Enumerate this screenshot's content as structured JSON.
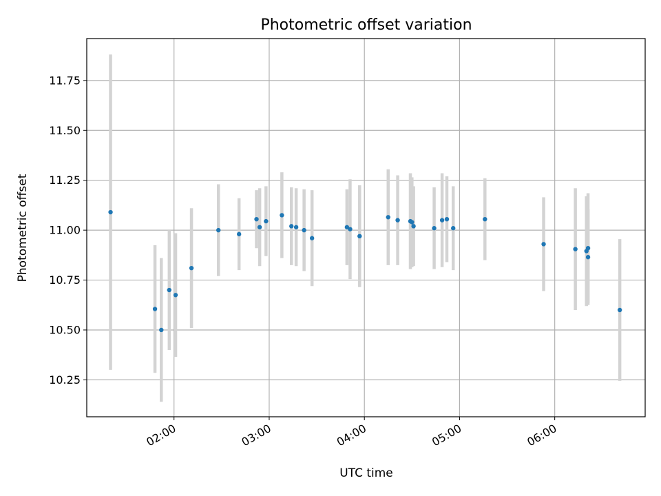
{
  "chart_data": {
    "type": "scatter",
    "title": "Photometric offset variation",
    "xlabel": "UTC time",
    "ylabel": "Photometric offset",
    "x_tick_labels": [
      "02:00",
      "03:00",
      "04:00",
      "05:00",
      "06:00"
    ],
    "x_tick_values": [
      "02:00",
      "03:00",
      "04:00",
      "05:00",
      "06:00"
    ],
    "y_tick_labels": [
      "10.25",
      "10.50",
      "10.75",
      "11.00",
      "11.25",
      "11.50",
      "11.75"
    ],
    "y_tick_values": [
      10.25,
      10.5,
      10.75,
      11.0,
      11.25,
      11.5,
      11.75
    ],
    "xlim": [
      "01:05",
      "06:57"
    ],
    "ylim": [
      10.065,
      11.96
    ],
    "grid": true,
    "legend": "none",
    "point_color": "#1f77b4",
    "error_bar_color": "#d3d3d3",
    "series": [
      {
        "points": [
          {
            "t": "01:20",
            "y": 11.09,
            "err": 0.79
          },
          {
            "t": "01:48",
            "y": 10.605,
            "err": 0.32
          },
          {
            "t": "01:52",
            "y": 10.5,
            "err": 0.36
          },
          {
            "t": "01:57",
            "y": 10.7,
            "err": 0.3
          },
          {
            "t": "02:01",
            "y": 10.675,
            "err": 0.31
          },
          {
            "t": "02:11",
            "y": 10.81,
            "err": 0.3
          },
          {
            "t": "02:28",
            "y": 11.0,
            "err": 0.23
          },
          {
            "t": "02:41",
            "y": 10.98,
            "err": 0.18
          },
          {
            "t": "02:52",
            "y": 11.055,
            "err": 0.145
          },
          {
            "t": "02:54",
            "y": 11.015,
            "err": 0.195
          },
          {
            "t": "02:58",
            "y": 11.045,
            "err": 0.175
          },
          {
            "t": "03:08",
            "y": 11.075,
            "err": 0.215
          },
          {
            "t": "03:14",
            "y": 11.02,
            "err": 0.195
          },
          {
            "t": "03:17",
            "y": 11.015,
            "err": 0.195
          },
          {
            "t": "03:22",
            "y": 11.0,
            "err": 0.205
          },
          {
            "t": "03:27",
            "y": 10.96,
            "err": 0.24
          },
          {
            "t": "03:49",
            "y": 11.015,
            "err": 0.19
          },
          {
            "t": "03:51",
            "y": 11.005,
            "err": 0.25
          },
          {
            "t": "03:57",
            "y": 10.97,
            "err": 0.255
          },
          {
            "t": "04:15",
            "y": 11.065,
            "err": 0.24
          },
          {
            "t": "04:21",
            "y": 11.05,
            "err": 0.225
          },
          {
            "t": "04:29",
            "y": 11.045,
            "err": 0.24
          },
          {
            "t": "04:30",
            "y": 11.04,
            "err": 0.225
          },
          {
            "t": "04:31",
            "y": 11.02,
            "err": 0.2
          },
          {
            "t": "04:44",
            "y": 11.01,
            "err": 0.205
          },
          {
            "t": "04:49",
            "y": 11.05,
            "err": 0.235
          },
          {
            "t": "04:52",
            "y": 11.055,
            "err": 0.215
          },
          {
            "t": "04:56",
            "y": 11.01,
            "err": 0.21
          },
          {
            "t": "05:16",
            "y": 11.055,
            "err": 0.205
          },
          {
            "t": "05:53",
            "y": 10.93,
            "err": 0.235
          },
          {
            "t": "06:13",
            "y": 10.905,
            "err": 0.305
          },
          {
            "t": "06:20",
            "y": 10.895,
            "err": 0.275
          },
          {
            "t": "06:21",
            "y": 10.91,
            "err": 0.275
          },
          {
            "t": "06:21",
            "y": 10.865,
            "err": 0.24
          },
          {
            "t": "06:41",
            "y": 10.6,
            "err": 0.355
          }
        ]
      }
    ]
  }
}
